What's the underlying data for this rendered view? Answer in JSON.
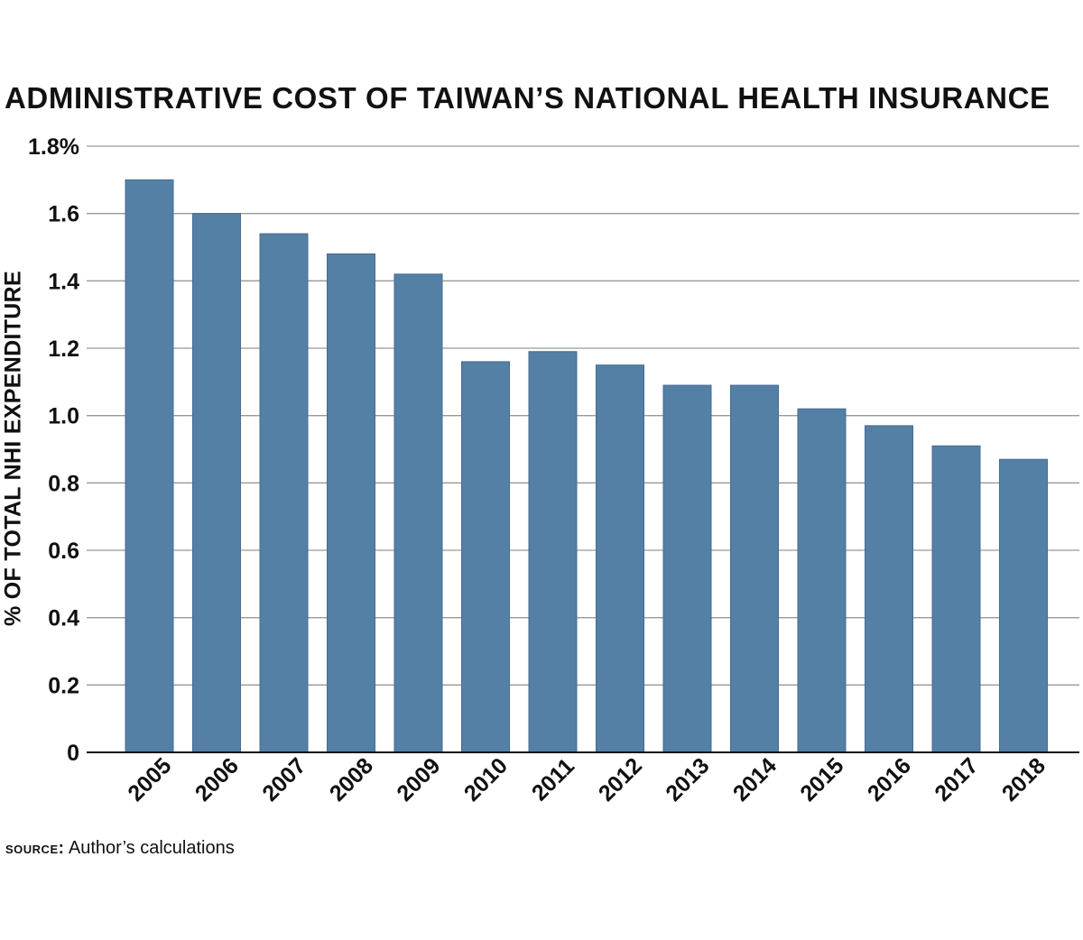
{
  "chart_data": {
    "type": "bar",
    "title": "ADMINISTRATIVE COST OF TAIWAN’S NATIONAL HEALTH INSURANCE",
    "ylabel": "% OF TOTAL NHI EXPENDITURE",
    "xlabel": "",
    "categories": [
      "2005",
      "2006",
      "2007",
      "2008",
      "2009",
      "2010",
      "2011",
      "2012",
      "2013",
      "2014",
      "2015",
      "2016",
      "2017",
      "2018"
    ],
    "values": [
      1.7,
      1.6,
      1.54,
      1.48,
      1.42,
      1.16,
      1.19,
      1.15,
      1.09,
      1.09,
      1.02,
      0.97,
      0.91,
      0.87
    ],
    "ylim": [
      0,
      1.8
    ],
    "yticks": [
      "0",
      "0.2",
      "0.4",
      "0.6",
      "0.8",
      "1.0",
      "1.2",
      "1.4",
      "1.6",
      "1.8%"
    ],
    "grid": true,
    "legend": "none",
    "bar_color": "#5580a6",
    "grid_color": "#999999"
  },
  "source": {
    "label": "SOURCE:",
    "text": "Author’s calculations"
  }
}
